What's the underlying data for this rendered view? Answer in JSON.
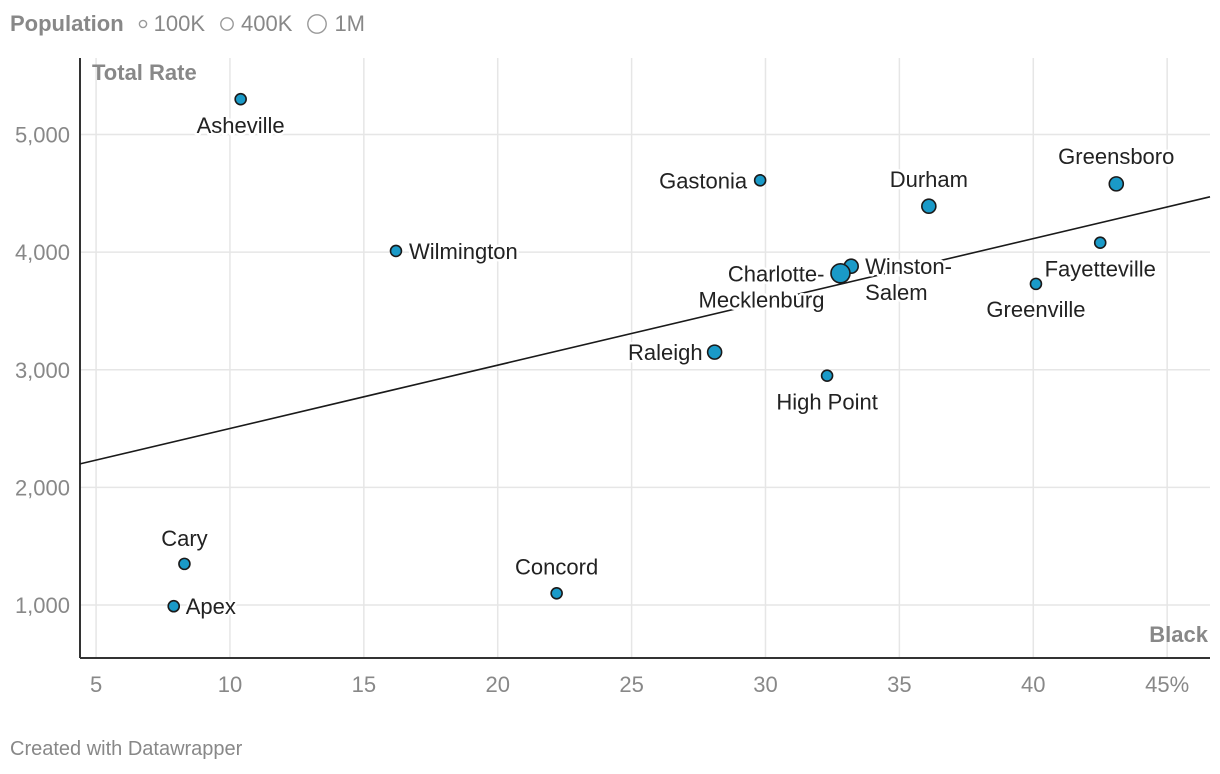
{
  "legend": {
    "title": "Population",
    "items": [
      {
        "label": "100K",
        "value": 100000
      },
      {
        "label": "400K",
        "value": 400000
      },
      {
        "label": "1M",
        "value": 1000000
      }
    ]
  },
  "credit": "Created with Datawrapper",
  "colors": {
    "point_fill": "#1a9ac8",
    "point_stroke": "#1a1a1a",
    "grid": "#e6e6e6",
    "axis": "#333333",
    "tick_text": "#888888",
    "trendline": "#1a1a1a"
  },
  "chart_data": {
    "type": "scatter",
    "xlabel": "Black",
    "ylabel": "Total Rate",
    "xlim": [
      4.4,
      46.6
    ],
    "ylim": [
      550,
      5650
    ],
    "x_ticks": [
      5,
      10,
      15,
      20,
      25,
      30,
      35,
      40,
      45
    ],
    "x_tick_labels": [
      "5",
      "10",
      "15",
      "20",
      "25",
      "30",
      "35",
      "40",
      "45%"
    ],
    "y_ticks": [
      1000,
      2000,
      3000,
      4000,
      5000
    ],
    "y_tick_labels": [
      "1,000",
      "2,000",
      "3,000",
      "4,000",
      "5,000"
    ],
    "grid": true,
    "legend": "top-left",
    "trendline": {
      "x": [
        4.4,
        46.6
      ],
      "y": [
        2200,
        4470
      ]
    },
    "points": [
      {
        "name": "Asheville",
        "x": 10.4,
        "y": 5300,
        "size": "small"
      },
      {
        "name": "Gastonia",
        "x": 29.8,
        "y": 4610,
        "size": "small"
      },
      {
        "name": "Durham",
        "x": 36.1,
        "y": 4390,
        "size": "medium"
      },
      {
        "name": "Greensboro",
        "x": 43.1,
        "y": 4580,
        "size": "medium"
      },
      {
        "name": "Wilmington",
        "x": 16.2,
        "y": 4010,
        "size": "small"
      },
      {
        "name": "Fayetteville",
        "x": 42.5,
        "y": 4080,
        "size": "small"
      },
      {
        "name": "Winston-Salem",
        "x": 33.2,
        "y": 3880,
        "size": "medium"
      },
      {
        "name": "Charlotte-Mecklenburg",
        "x": 32.8,
        "y": 3820,
        "size": "large"
      },
      {
        "name": "Greenville",
        "x": 40.1,
        "y": 3730,
        "size": "small"
      },
      {
        "name": "Raleigh",
        "x": 28.1,
        "y": 3150,
        "size": "medium"
      },
      {
        "name": "High Point",
        "x": 32.3,
        "y": 2950,
        "size": "small"
      },
      {
        "name": "Cary",
        "x": 8.3,
        "y": 1350,
        "size": "small"
      },
      {
        "name": "Apex",
        "x": 7.9,
        "y": 990,
        "size": "small"
      },
      {
        "name": "Concord",
        "x": 22.2,
        "y": 1100,
        "size": "small"
      }
    ],
    "point_labels": [
      {
        "lines": [
          "Asheville"
        ]
      },
      {
        "lines": [
          "Gastonia"
        ]
      },
      {
        "lines": [
          "Durham"
        ]
      },
      {
        "lines": [
          "Greensboro"
        ]
      },
      {
        "lines": [
          "Wilmington"
        ]
      },
      {
        "lines": [
          "Fayetteville"
        ]
      },
      {
        "lines": [
          "Winston-",
          "Salem"
        ]
      },
      {
        "lines": [
          "Charlotte-",
          "Mecklenburg"
        ]
      },
      {
        "lines": [
          "Greenville"
        ]
      },
      {
        "lines": [
          "Raleigh"
        ]
      },
      {
        "lines": [
          "High Point"
        ]
      },
      {
        "lines": [
          "Cary"
        ]
      },
      {
        "lines": [
          "Apex"
        ]
      },
      {
        "lines": [
          "Concord"
        ]
      }
    ]
  }
}
